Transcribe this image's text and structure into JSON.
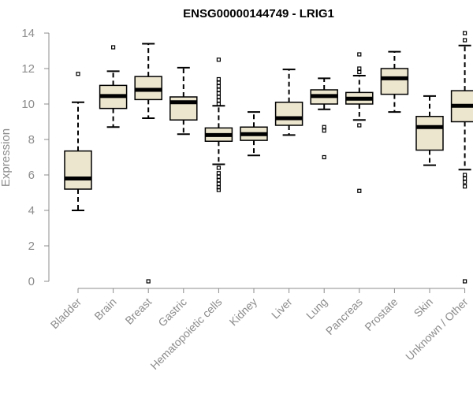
{
  "chart_data": {
    "type": "boxplot",
    "title": "ENSG00000144749 - LRIG1",
    "xlabel": "",
    "ylabel": "Expression",
    "ylim": [
      0,
      14
    ],
    "yticks": [
      0,
      2,
      4,
      6,
      8,
      10,
      12,
      14
    ],
    "categories": [
      "Bladder",
      "Brain",
      "Breast",
      "Gastric",
      "Hematopoietic cells",
      "Kidney",
      "Liver",
      "Lung",
      "Pancreas",
      "Prostate",
      "Skin",
      "Unknown / Other"
    ],
    "boxes": [
      {
        "name": "Bladder",
        "whisker_low": 4.0,
        "q1": 5.2,
        "median": 5.8,
        "q3": 7.35,
        "whisker_high": 10.1,
        "outliers": [
          11.7
        ]
      },
      {
        "name": "Brain",
        "whisker_low": 8.7,
        "q1": 9.75,
        "median": 10.45,
        "q3": 11.05,
        "whisker_high": 11.85,
        "outliers": [
          13.2
        ]
      },
      {
        "name": "Breast",
        "whisker_low": 9.2,
        "q1": 10.25,
        "median": 10.8,
        "q3": 11.55,
        "whisker_high": 13.4,
        "outliers": [
          0.0
        ]
      },
      {
        "name": "Gastric",
        "whisker_low": 8.3,
        "q1": 9.1,
        "median": 10.1,
        "q3": 10.4,
        "whisker_high": 12.05,
        "outliers": []
      },
      {
        "name": "Hematopoietic cells",
        "whisker_low": 6.6,
        "q1": 7.9,
        "median": 8.25,
        "q3": 8.65,
        "whisker_high": 9.9,
        "outliers": [
          10.0,
          10.2,
          10.4,
          10.6,
          10.8,
          11.0,
          11.2,
          11.4,
          12.5,
          6.4,
          6.1,
          5.9,
          5.7,
          5.5,
          5.3,
          5.15
        ]
      },
      {
        "name": "Kidney",
        "whisker_low": 7.1,
        "q1": 7.95,
        "median": 8.3,
        "q3": 8.7,
        "whisker_high": 9.55,
        "outliers": []
      },
      {
        "name": "Liver",
        "whisker_low": 8.25,
        "q1": 8.8,
        "median": 9.2,
        "q3": 10.1,
        "whisker_high": 11.95,
        "outliers": []
      },
      {
        "name": "Lung",
        "whisker_low": 9.7,
        "q1": 10.0,
        "median": 10.45,
        "q3": 10.8,
        "whisker_high": 11.45,
        "outliers": [
          8.7,
          8.5,
          7.0
        ]
      },
      {
        "name": "Pancreas",
        "whisker_low": 9.1,
        "q1": 10.0,
        "median": 10.3,
        "q3": 10.65,
        "whisker_high": 11.6,
        "outliers": [
          11.8,
          12.0,
          12.8,
          8.8,
          5.1
        ]
      },
      {
        "name": "Prostate",
        "whisker_low": 9.55,
        "q1": 10.55,
        "median": 11.45,
        "q3": 12.0,
        "whisker_high": 12.95,
        "outliers": []
      },
      {
        "name": "Skin",
        "whisker_low": 6.55,
        "q1": 7.4,
        "median": 8.7,
        "q3": 9.3,
        "whisker_high": 10.45,
        "outliers": []
      },
      {
        "name": "Unknown / Other",
        "whisker_low": 6.3,
        "q1": 9.0,
        "median": 9.9,
        "q3": 10.75,
        "whisker_high": 13.3,
        "outliers": [
          13.6,
          14.0,
          6.0,
          5.8,
          5.6,
          5.35,
          0.0
        ]
      }
    ]
  }
}
